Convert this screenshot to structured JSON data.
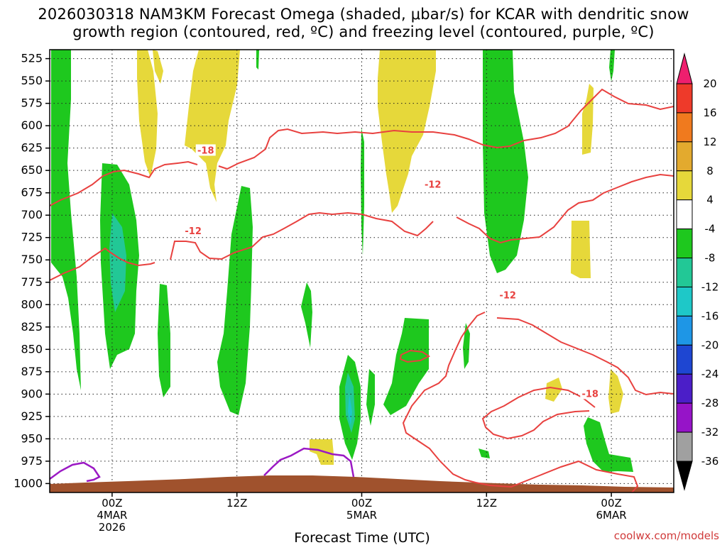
{
  "title_line1": "2026030318 NAM3KM Forecast Omega (shaded, μbar/s) for KCAR with dendritic snow",
  "title_line2": "growth region (contoured, red, ºC) and freezing level (contoured, purple, ºC)",
  "credit": "coolwx.com/models",
  "chart_data": {
    "type": "time-height contour",
    "x_axis_label": "Forecast Time (UTC)",
    "x_range_hours": [
      -5,
      45
    ],
    "x_ticks": [
      {
        "hour": 0,
        "lines": [
          "00Z",
          "4MAR",
          "2026"
        ]
      },
      {
        "hour": 10,
        "lines": [
          "12Z"
        ]
      },
      {
        "hour": 20,
        "lines": [
          "00Z",
          "5MAR"
        ]
      },
      {
        "hour": 30,
        "lines": [
          "12Z"
        ]
      },
      {
        "hour": 40,
        "lines": [
          "00Z",
          "6MAR"
        ]
      }
    ],
    "y_axis_unit": "hPa",
    "y_range": [
      1010,
      515
    ],
    "y_ticks": [
      "525",
      "550",
      "575",
      "600",
      "625",
      "650",
      "675",
      "700",
      "725",
      "750",
      "775",
      "800",
      "825",
      "850",
      "875",
      "900",
      "925",
      "950",
      "975",
      "1000"
    ],
    "grid": "dotted",
    "colorbar": {
      "labels": [
        "20",
        "16",
        "12",
        "8",
        "4",
        "-4",
        "-8",
        "-12",
        "-16",
        "-20",
        "-24",
        "-28",
        "-32",
        "-36"
      ],
      "colors": [
        "#ee1f6e",
        "#ee3a2a",
        "#f07a1e",
        "#e3aa2e",
        "#e6d83a",
        "#ffffff",
        "#1ec81e",
        "#22c896",
        "#1ec8c8",
        "#1e96e6",
        "#1e46d2",
        "#4b1ec8",
        "#9614c8",
        "#a0a0a0",
        "#000000"
      ]
    },
    "contour_labels": [
      {
        "text": "-18",
        "hour": 7.5,
        "p": 628
      },
      {
        "text": "-12",
        "hour": 6.5,
        "p": 718
      },
      {
        "text": "-12",
        "hour": 25.7,
        "p": 666
      },
      {
        "text": "-12",
        "hour": 31.7,
        "p": 790
      },
      {
        "text": "-18",
        "hour": 38.3,
        "p": 900
      }
    ]
  }
}
